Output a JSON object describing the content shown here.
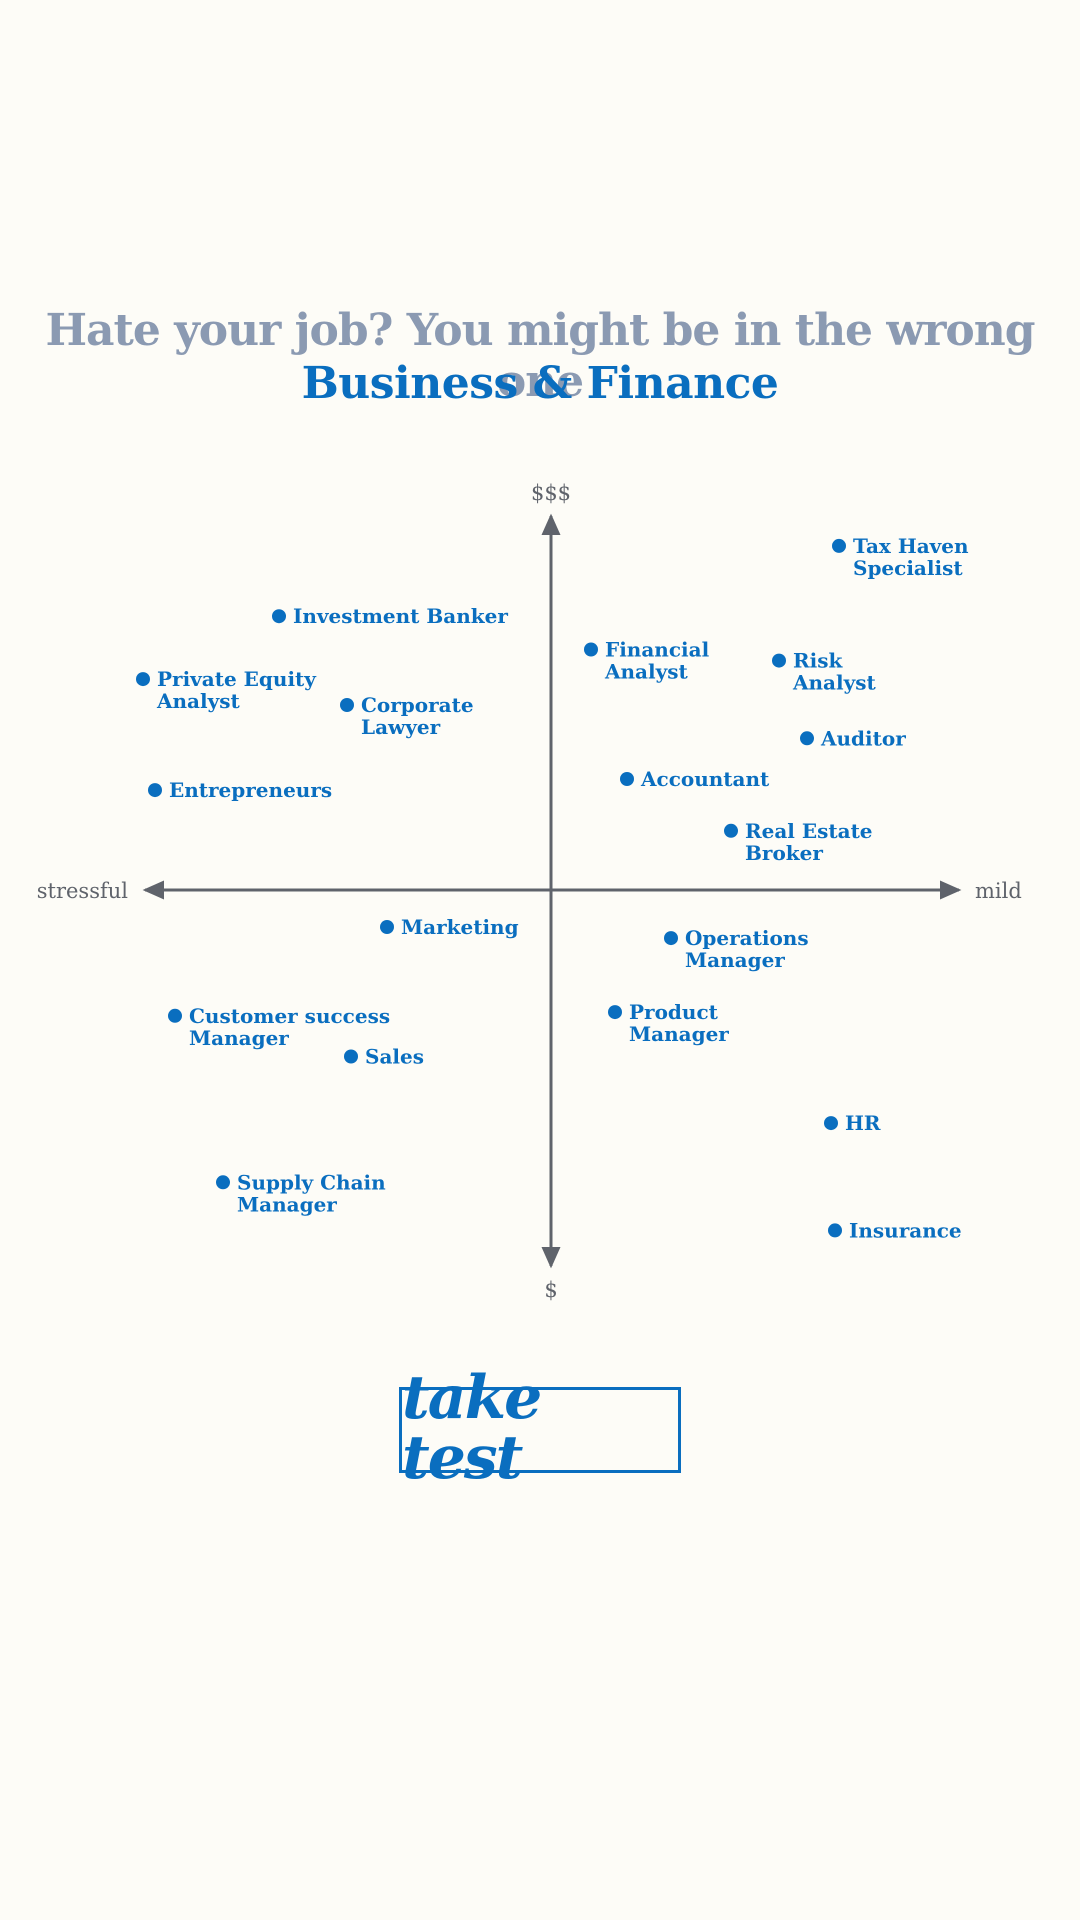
{
  "header": {
    "title": "Hate your job? You might be in the wrong one",
    "subtitle": "Business & Finance"
  },
  "cta": {
    "label": "take test"
  },
  "colors": {
    "background": "#fdfcf7",
    "title": "#8b9ab2",
    "accent": "#0a6ebf",
    "axis": "#5f636b"
  },
  "chart_data": {
    "type": "scatter",
    "axes": {
      "x": {
        "left_label": "stressful",
        "right_label": "mild"
      },
      "y": {
        "top_label": "$$$",
        "bottom_label": "$"
      }
    },
    "xlim": [
      -1,
      1
    ],
    "ylim": [
      -1,
      1
    ],
    "grid": false,
    "legend": "none",
    "points": [
      {
        "label": [
          "Tax Haven",
          "Specialist"
        ],
        "x": 0.72,
        "y": 0.93
      },
      {
        "label": [
          "Investment Banker"
        ],
        "x": -0.68,
        "y": 0.74
      },
      {
        "label": [
          "Financial",
          "Analyst"
        ],
        "x": 0.1,
        "y": 0.65
      },
      {
        "label": [
          "Risk",
          "Analyst"
        ],
        "x": 0.57,
        "y": 0.62
      },
      {
        "label": [
          "Private Equity",
          "Analyst"
        ],
        "x": -1.02,
        "y": 0.57
      },
      {
        "label": [
          "Corporate",
          "Lawyer"
        ],
        "x": -0.51,
        "y": 0.5
      },
      {
        "label": [
          "Auditor"
        ],
        "x": 0.64,
        "y": 0.41
      },
      {
        "label": [
          "Accountant"
        ],
        "x": 0.19,
        "y": 0.3
      },
      {
        "label": [
          "Entrepreneurs"
        ],
        "x": -0.99,
        "y": 0.27
      },
      {
        "label": [
          "Real  Estate",
          "Broker"
        ],
        "x": 0.45,
        "y": 0.16
      },
      {
        "label": [
          "Marketing"
        ],
        "x": -0.41,
        "y": -0.1
      },
      {
        "label": [
          "Operations",
          "Manager"
        ],
        "x": 0.3,
        "y": -0.13
      },
      {
        "label": [
          "Customer success",
          "Manager"
        ],
        "x": -0.94,
        "y": -0.34
      },
      {
        "label": [
          "Product",
          "Manager"
        ],
        "x": 0.16,
        "y": -0.33
      },
      {
        "label": [
          "Sales"
        ],
        "x": -0.5,
        "y": -0.45
      },
      {
        "label": [
          "HR"
        ],
        "x": 0.7,
        "y": -0.63
      },
      {
        "label": [
          "Supply Chain",
          "Manager"
        ],
        "x": -0.82,
        "y": -0.79
      },
      {
        "label": [
          "Insurance"
        ],
        "x": 0.71,
        "y": -0.92
      }
    ]
  }
}
